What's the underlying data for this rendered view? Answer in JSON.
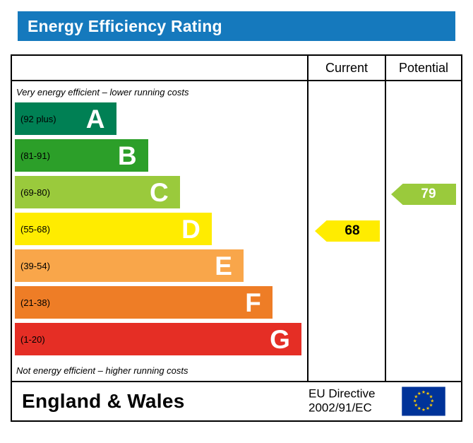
{
  "header": {
    "title": "Energy Efficiency Rating",
    "bar_color": "#1579bd",
    "text_color": "#ffffff"
  },
  "chart_data": {
    "type": "bar",
    "orientation": "horizontal",
    "title": "Energy Efficiency Rating",
    "top_note": "Very energy efficient – lower running costs",
    "bottom_note": "Not energy efficient – higher running costs",
    "columns": [
      "Current",
      "Potential"
    ],
    "bands": [
      {
        "letter": "A",
        "range": "(92 plus)",
        "min": 92,
        "max": 100,
        "color": "#008054",
        "width_pct": 35
      },
      {
        "letter": "B",
        "range": "(81-91)",
        "min": 81,
        "max": 91,
        "color": "#2c9f29",
        "width_pct": 46
      },
      {
        "letter": "C",
        "range": "(69-80)",
        "min": 69,
        "max": 80,
        "color": "#9aca3c",
        "width_pct": 57
      },
      {
        "letter": "D",
        "range": "(55-68)",
        "min": 55,
        "max": 68,
        "color": "#ffec00",
        "width_pct": 68
      },
      {
        "letter": "E",
        "range": "(39-54)",
        "min": 39,
        "max": 54,
        "color": "#f9a64a",
        "width_pct": 79
      },
      {
        "letter": "F",
        "range": "(21-38)",
        "min": 21,
        "max": 38,
        "color": "#ee7d26",
        "width_pct": 89
      },
      {
        "letter": "G",
        "range": "(1-20)",
        "min": 1,
        "max": 20,
        "color": "#e52e25",
        "width_pct": 99
      }
    ],
    "current": {
      "value": 68,
      "band": "D",
      "color": "#ffec00",
      "text_color": "#000000"
    },
    "potential": {
      "value": 79,
      "band": "C",
      "color": "#9aca3c",
      "text_color": "#ffffff"
    }
  },
  "footer": {
    "region": "England & Wales",
    "directive_line1": "EU Directive",
    "directive_line2": "2002/91/EC",
    "flag_bg": "#003399",
    "flag_star_color": "#ffcc00"
  }
}
